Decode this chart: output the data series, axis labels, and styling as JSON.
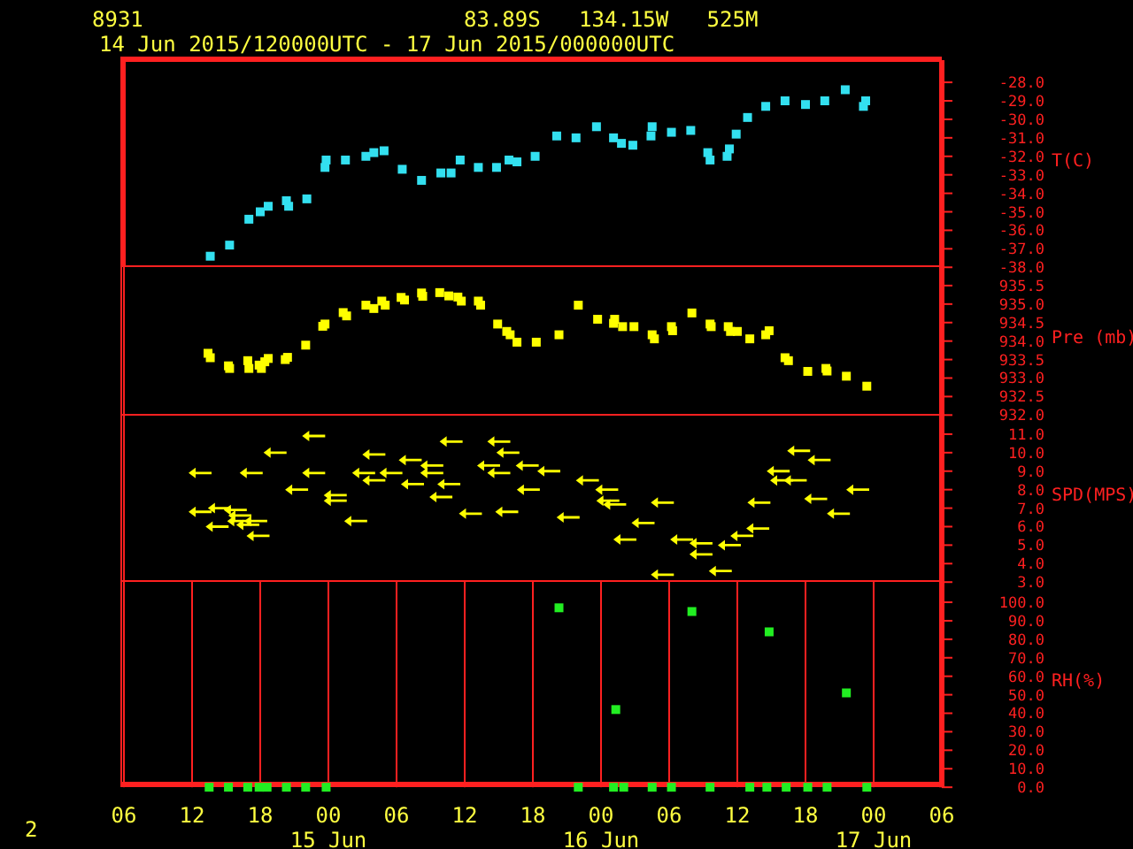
{
  "chart_data": [
    {
      "type": "scatter",
      "title": "8931",
      "subtitle": "14 Jun 2015/120000UTC - 17 Jun 2015/000000UTC",
      "annotations": [
        "83.89S   134.15W   525M"
      ],
      "ylabel": "T(C)",
      "marker": "square",
      "grid": "x",
      "tick_labels": "y",
      "color": "#33e0f0",
      "xlim": [
        "2015-06-14T06:00",
        "2015-06-17T06:00"
      ],
      "xticks": [
        {
          "value": "2015-06-14T06:00",
          "label": null
        },
        {
          "value": "2015-06-14T12:00",
          "label": null
        },
        {
          "value": "2015-06-14T18:00",
          "label": null
        },
        {
          "value": "2015-06-15T00:00",
          "label": null
        },
        {
          "value": "2015-06-15T06:00",
          "label": null
        },
        {
          "value": "2015-06-15T12:00",
          "label": null
        },
        {
          "value": "2015-06-15T18:00",
          "label": null
        },
        {
          "value": "2015-06-16T00:00",
          "label": null
        },
        {
          "value": "2015-06-16T06:00",
          "label": null
        },
        {
          "value": "2015-06-16T12:00",
          "label": null
        },
        {
          "value": "2015-06-16T18:00",
          "label": null
        },
        {
          "value": "2015-06-17T00:00",
          "label": null
        },
        {
          "value": "2015-06-17T06:00",
          "label": null
        }
      ],
      "ylim": [
        -38,
        -26.8
      ],
      "yticks": [
        {
          "value": -28,
          "label": "-28.0"
        },
        {
          "value": -29,
          "label": "-29.0"
        },
        {
          "value": -30,
          "label": "-30.0"
        },
        {
          "value": -31,
          "label": "-31.0"
        },
        {
          "value": -32,
          "label": "-32.0"
        },
        {
          "value": -33,
          "label": "-33.0"
        },
        {
          "value": -34,
          "label": "-34.0"
        },
        {
          "value": -35,
          "label": "-35.0"
        },
        {
          "value": -36,
          "label": "-36.0"
        },
        {
          "value": -37,
          "label": "-37.0"
        },
        {
          "value": -38,
          "label": "-38.0"
        }
      ],
      "x": [
        "2015-06-14T13:36",
        "2015-06-14T15:18",
        "2015-06-14T17:00",
        "2015-06-14T18:00",
        "2015-06-14T18:42",
        "2015-06-14T20:18",
        "2015-06-14T20:30",
        "2015-06-14T22:06",
        "2015-06-14T23:42",
        "2015-06-14T23:48",
        "2015-06-15T01:30",
        "2015-06-15T03:18",
        "2015-06-15T04:00",
        "2015-06-15T04:54",
        "2015-06-15T06:30",
        "2015-06-15T08:12",
        "2015-06-15T09:54",
        "2015-06-15T10:48",
        "2015-06-15T11:36",
        "2015-06-15T13:12",
        "2015-06-15T14:48",
        "2015-06-15T15:54",
        "2015-06-15T16:36",
        "2015-06-15T18:12",
        "2015-06-15T20:06",
        "2015-06-15T21:48",
        "2015-06-15T23:36",
        "2015-06-16T01:06",
        "2015-06-16T01:48",
        "2015-06-16T02:48",
        "2015-06-16T04:24",
        "2015-06-16T04:30",
        "2015-06-16T06:12",
        "2015-06-16T07:54",
        "2015-06-16T09:24",
        "2015-06-16T09:36",
        "2015-06-16T11:06",
        "2015-06-16T11:18",
        "2015-06-16T11:54",
        "2015-06-16T12:54",
        "2015-06-16T14:30",
        "2015-06-16T16:12",
        "2015-06-16T18:00",
        "2015-06-16T19:42",
        "2015-06-16T21:30",
        "2015-06-16T23:06",
        "2015-06-16T23:18"
      ],
      "values": [
        -37.4,
        -36.8,
        -35.4,
        -35.0,
        -34.7,
        -34.4,
        -34.7,
        -34.3,
        -32.6,
        -32.2,
        -32.2,
        -32.0,
        -31.8,
        -31.7,
        -32.7,
        -33.3,
        -32.9,
        -32.9,
        -32.2,
        -32.6,
        -32.6,
        -32.2,
        -32.3,
        -32.0,
        -30.9,
        -31.0,
        -30.4,
        -31.0,
        -31.3,
        -31.4,
        -30.9,
        -30.4,
        -30.7,
        -30.6,
        -31.8,
        -32.2,
        -32.0,
        -31.6,
        -30.8,
        -29.9,
        -29.3,
        -29.0,
        -29.2,
        -29.0,
        -28.4,
        -29.3,
        -29.0
      ]
    },
    {
      "type": "scatter",
      "ylabel": "Pre (mb)",
      "marker": "square",
      "grid": "x",
      "tick_labels": "y",
      "color": "#ffff00",
      "xlim": [
        "2015-06-14T06:00",
        "2015-06-17T06:00"
      ],
      "xticks": [
        {
          "value": "2015-06-14T06:00",
          "label": null
        },
        {
          "value": "2015-06-14T12:00",
          "label": null
        },
        {
          "value": "2015-06-14T18:00",
          "label": null
        },
        {
          "value": "2015-06-15T00:00",
          "label": null
        },
        {
          "value": "2015-06-15T06:00",
          "label": null
        },
        {
          "value": "2015-06-15T12:00",
          "label": null
        },
        {
          "value": "2015-06-15T18:00",
          "label": null
        },
        {
          "value": "2015-06-16T00:00",
          "label": null
        },
        {
          "value": "2015-06-16T06:00",
          "label": null
        },
        {
          "value": "2015-06-16T12:00",
          "label": null
        },
        {
          "value": "2015-06-16T18:00",
          "label": null
        },
        {
          "value": "2015-06-17T00:00",
          "label": null
        },
        {
          "value": "2015-06-17T06:00",
          "label": null
        }
      ],
      "ylim": [
        932,
        936
      ],
      "yticks": [
        {
          "value": 932,
          "label": "932.0"
        },
        {
          "value": 932.5,
          "label": "932.5"
        },
        {
          "value": 933,
          "label": "933.0"
        },
        {
          "value": 933.5,
          "label": "933.5"
        },
        {
          "value": 934,
          "label": "934.0"
        },
        {
          "value": 934.5,
          "label": "934.5"
        },
        {
          "value": 935,
          "label": "935.0"
        },
        {
          "value": 935.5,
          "label": "935.5"
        }
      ],
      "x": [
        "2015-06-14T13:24",
        "2015-06-14T13:36",
        "2015-06-14T15:12",
        "2015-06-14T15:18",
        "2015-06-14T16:54",
        "2015-06-14T17:00",
        "2015-06-14T17:54",
        "2015-06-14T18:06",
        "2015-06-14T18:24",
        "2015-06-14T18:42",
        "2015-06-14T20:12",
        "2015-06-14T20:24",
        "2015-06-14T22:00",
        "2015-06-14T23:30",
        "2015-06-14T23:42",
        "2015-06-15T01:18",
        "2015-06-15T01:36",
        "2015-06-15T03:18",
        "2015-06-15T04:00",
        "2015-06-15T04:42",
        "2015-06-15T05:00",
        "2015-06-15T06:24",
        "2015-06-15T06:42",
        "2015-06-15T08:12",
        "2015-06-15T08:18",
        "2015-06-15T09:48",
        "2015-06-15T10:36",
        "2015-06-15T11:24",
        "2015-06-15T11:42",
        "2015-06-15T13:12",
        "2015-06-15T13:24",
        "2015-06-15T14:54",
        "2015-06-15T15:42",
        "2015-06-15T16:00",
        "2015-06-15T16:36",
        "2015-06-15T18:18",
        "2015-06-15T20:18",
        "2015-06-15T22:00",
        "2015-06-15T23:42",
        "2015-06-16T01:12",
        "2015-06-16T01:06",
        "2015-06-16T01:54",
        "2015-06-16T02:54",
        "2015-06-16T04:30",
        "2015-06-16T04:42",
        "2015-06-16T06:12",
        "2015-06-16T06:18",
        "2015-06-16T08:00",
        "2015-06-16T09:36",
        "2015-06-16T09:42",
        "2015-06-16T11:12",
        "2015-06-16T11:24",
        "2015-06-16T12:00",
        "2015-06-16T13:06",
        "2015-06-16T14:30",
        "2015-06-16T14:48",
        "2015-06-16T16:12",
        "2015-06-16T16:30",
        "2015-06-16T18:12",
        "2015-06-16T19:48",
        "2015-06-16T19:54",
        "2015-06-16T21:36",
        "2015-06-16T23:24"
      ],
      "values": [
        933.67,
        933.55,
        933.33,
        933.26,
        933.47,
        933.26,
        933.35,
        933.26,
        933.44,
        933.53,
        933.5,
        933.56,
        933.89,
        934.4,
        934.46,
        934.77,
        934.68,
        934.97,
        934.88,
        935.08,
        934.97,
        935.18,
        935.11,
        935.3,
        935.21,
        935.31,
        935.22,
        935.19,
        935.08,
        935.08,
        934.97,
        934.46,
        934.26,
        934.17,
        933.97,
        933.97,
        934.17,
        934.97,
        934.59,
        934.59,
        934.48,
        934.39,
        934.39,
        934.17,
        934.06,
        934.39,
        934.28,
        934.76,
        934.46,
        934.39,
        934.39,
        934.26,
        934.26,
        934.06,
        934.17,
        934.28,
        933.55,
        933.47,
        933.18,
        933.26,
        933.19,
        933.05,
        932.78
      ]
    },
    {
      "type": "scatter",
      "ylabel": "SPD(MPS)",
      "grid": "x",
      "tick_labels": "y",
      "color": "#ffff00",
      "xlim": [
        "2015-06-14T06:00",
        "2015-06-17T06:00"
      ],
      "xticks": [
        {
          "value": "2015-06-14T06:00",
          "label": null
        },
        {
          "value": "2015-06-14T12:00",
          "label": null
        },
        {
          "value": "2015-06-14T18:00",
          "label": null
        },
        {
          "value": "2015-06-15T00:00",
          "label": null
        },
        {
          "value": "2015-06-15T06:00",
          "label": null
        },
        {
          "value": "2015-06-15T12:00",
          "label": null
        },
        {
          "value": "2015-06-15T18:00",
          "label": null
        },
        {
          "value": "2015-06-16T00:00",
          "label": null
        },
        {
          "value": "2015-06-16T06:00",
          "label": null
        },
        {
          "value": "2015-06-16T12:00",
          "label": null
        },
        {
          "value": "2015-06-16T18:00",
          "label": null
        },
        {
          "value": "2015-06-17T00:00",
          "label": null
        },
        {
          "value": "2015-06-17T06:00",
          "label": null
        }
      ],
      "ylim": [
        3,
        12
      ],
      "yticks": [
        {
          "value": 3,
          "label": "3.0"
        },
        {
          "value": 4,
          "label": "4.0"
        },
        {
          "value": 5,
          "label": "5.0"
        },
        {
          "value": 6,
          "label": "6.0"
        },
        {
          "value": 7,
          "label": "7.0"
        },
        {
          "value": 8,
          "label": "8.0"
        },
        {
          "value": 9,
          "label": "9.0"
        },
        {
          "value": 10,
          "label": "10.0"
        },
        {
          "value": 11,
          "label": "11.0"
        }
      ],
      "x": [
        "2015-06-14T12:42",
        "2015-06-14T12:42",
        "2015-06-14T14:12",
        "2015-06-14T14:24",
        "2015-06-14T15:48",
        "2015-06-14T16:06",
        "2015-06-14T16:12",
        "2015-06-14T16:54",
        "2015-06-14T17:12",
        "2015-06-14T17:36",
        "2015-06-14T17:48",
        "2015-06-14T19:18",
        "2015-06-14T21:12",
        "2015-06-14T22:42",
        "2015-06-14T22:42",
        "2015-06-15T00:36",
        "2015-06-15T00:36",
        "2015-06-15T02:24",
        "2015-06-15T03:06",
        "2015-06-15T04:00",
        "2015-06-15T04:00",
        "2015-06-15T05:30",
        "2015-06-15T07:12",
        "2015-06-15T07:24",
        "2015-06-15T09:06",
        "2015-06-15T09:06",
        "2015-06-15T09:54",
        "2015-06-15T10:36",
        "2015-06-15T10:48",
        "2015-06-15T12:30",
        "2015-06-15T15:00",
        "2015-06-15T14:06",
        "2015-06-15T15:00",
        "2015-06-15T15:48",
        "2015-06-15T15:42",
        "2015-06-15T17:30",
        "2015-06-15T17:36",
        "2015-06-15T19:24",
        "2015-06-15T21:06",
        "2015-06-15T22:48",
        "2015-06-16T00:30",
        "2015-06-16T00:36",
        "2015-06-16T01:12",
        "2015-06-16T02:06",
        "2015-06-16T03:42",
        "2015-06-16T05:24",
        "2015-06-16T05:24",
        "2015-06-16T07:06",
        "2015-06-16T08:48",
        "2015-06-16T08:48",
        "2015-06-16T10:30",
        "2015-06-16T11:18",
        "2015-06-16T12:24",
        "2015-06-16T13:48",
        "2015-06-16T13:54",
        "2015-06-16T15:36",
        "2015-06-16T15:54",
        "2015-06-16T17:24",
        "2015-06-16T17:06",
        "2015-06-16T18:54",
        "2015-06-16T19:12",
        "2015-06-16T20:54",
        "2015-06-16T22:36"
      ],
      "values": [
        8.9,
        6.8,
        6.0,
        7.0,
        6.9,
        6.3,
        6.6,
        6.1,
        8.9,
        6.3,
        5.5,
        10.0,
        8.0,
        10.9,
        8.9,
        7.7,
        7.4,
        6.3,
        8.9,
        9.9,
        8.5,
        8.9,
        9.6,
        8.3,
        9.3,
        8.9,
        7.6,
        8.3,
        10.6,
        6.7,
        10.6,
        9.3,
        8.9,
        10.0,
        6.8,
        9.3,
        8.0,
        9.0,
        6.5,
        8.5,
        8.0,
        7.4,
        7.2,
        5.3,
        6.2,
        7.3,
        3.4,
        5.3,
        5.1,
        4.5,
        3.6,
        5.0,
        5.5,
        5.9,
        7.3,
        9.0,
        8.5,
        10.1,
        8.5,
        7.5,
        9.6,
        6.7,
        8.0
      ]
    },
    {
      "type": "scatter",
      "ylabel": "RH(%)",
      "marker": "square",
      "grid": "x",
      "annotations": [
        "2"
      ],
      "color": "#22ee22",
      "xlim": [
        "2015-06-14T06:00",
        "2015-06-17T06:00"
      ],
      "xticks": [
        {
          "value": "2015-06-14T06:00",
          "label": "06"
        },
        {
          "value": "2015-06-14T12:00",
          "label": "12"
        },
        {
          "value": "2015-06-14T18:00",
          "label": "18"
        },
        {
          "value": "2015-06-15T00:00",
          "label": "00\n15 Jun"
        },
        {
          "value": "2015-06-15T06:00",
          "label": "06"
        },
        {
          "value": "2015-06-15T12:00",
          "label": "12"
        },
        {
          "value": "2015-06-15T18:00",
          "label": "18"
        },
        {
          "value": "2015-06-16T00:00",
          "label": "00\n16 Jun"
        },
        {
          "value": "2015-06-16T06:00",
          "label": "06"
        },
        {
          "value": "2015-06-16T12:00",
          "label": "12"
        },
        {
          "value": "2015-06-16T18:00",
          "label": "18"
        },
        {
          "value": "2015-06-17T00:00",
          "label": "00\n17 Jun"
        },
        {
          "value": "2015-06-17T06:00",
          "label": "06"
        }
      ],
      "ylim": [
        0,
        111
      ],
      "yticks": [
        {
          "value": 0,
          "label": "0.0"
        },
        {
          "value": 10,
          "label": "10.0"
        },
        {
          "value": 20,
          "label": "20.0"
        },
        {
          "value": 30,
          "label": "30.0"
        },
        {
          "value": 40,
          "label": "40.0"
        },
        {
          "value": 50,
          "label": "50.0"
        },
        {
          "value": 60,
          "label": "60.0"
        },
        {
          "value": 70,
          "label": "70.0"
        },
        {
          "value": 80,
          "label": "80.0"
        },
        {
          "value": 90,
          "label": "90.0"
        },
        {
          "value": 100,
          "label": "100.0"
        }
      ],
      "x": [
        "2015-06-14T13:30",
        "2015-06-14T15:12",
        "2015-06-14T16:54",
        "2015-06-14T17:54",
        "2015-06-14T18:36",
        "2015-06-14T20:18",
        "2015-06-14T22:00",
        "2015-06-14T23:48",
        "2015-06-15T20:18",
        "2015-06-15T22:00",
        "2015-06-16T01:06",
        "2015-06-16T01:18",
        "2015-06-16T02:00",
        "2015-06-16T04:30",
        "2015-06-16T06:12",
        "2015-06-16T08:00",
        "2015-06-16T09:36",
        "2015-06-16T13:06",
        "2015-06-16T14:36",
        "2015-06-16T14:48",
        "2015-06-16T16:18",
        "2015-06-16T18:12",
        "2015-06-16T19:54",
        "2015-06-16T21:36",
        "2015-06-16T23:24"
      ],
      "values": [
        0,
        0,
        0,
        0,
        0,
        0,
        0,
        0,
        97,
        0,
        0,
        42,
        0,
        0,
        0,
        95,
        0,
        0,
        0,
        84,
        0,
        0,
        0,
        51,
        0
      ]
    }
  ]
}
